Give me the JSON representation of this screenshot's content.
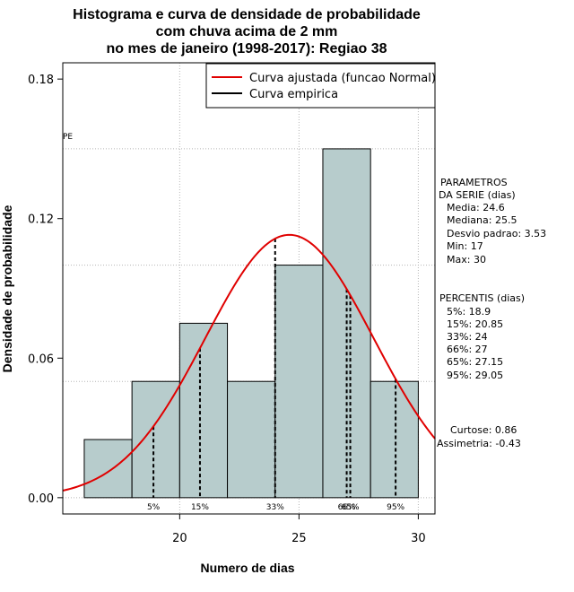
{
  "chart_data": {
    "type": "bar",
    "title_lines": [
      "Histograma e curva de densidade de probabilidade",
      "com chuva acima de 2 mm",
      "no mes de janeiro (1998-2017): Regiao 38"
    ],
    "xlabel": "Numero de dias",
    "ylabel": "Densidade de probabilidade",
    "xlim": [
      15.1,
      30.7
    ],
    "ylim": [
      -0.007,
      0.187
    ],
    "x_ticks": [
      20,
      25,
      30
    ],
    "y_ticks": [
      0.0,
      0.06,
      0.12,
      0.18
    ],
    "y_tick_labels": [
      "0.00",
      "0.06",
      "0.12",
      "0.18"
    ],
    "bins": [
      {
        "start": 16,
        "end": 18,
        "density": 0.025
      },
      {
        "start": 18,
        "end": 20,
        "density": 0.05
      },
      {
        "start": 20,
        "end": 22,
        "density": 0.075
      },
      {
        "start": 22,
        "end": 24,
        "density": 0.05
      },
      {
        "start": 24,
        "end": 26,
        "density": 0.1
      },
      {
        "start": 26,
        "end": 28,
        "density": 0.15
      },
      {
        "start": 28,
        "end": 30,
        "density": 0.05
      }
    ],
    "h_gridlines": [
      0.05,
      0.1,
      0.15
    ],
    "v_gridlines": [
      20,
      25,
      30
    ],
    "normal_curve": {
      "mean": 24.6,
      "sd": 3.53,
      "label": "Curva ajustada (funcao Normal)",
      "color": "#e00000"
    },
    "empirical_curve": {
      "label": "Curva empirica",
      "color": "#000000"
    },
    "pe_label": "PE",
    "percentiles": [
      {
        "label": "5%",
        "value": 18.9
      },
      {
        "label": "15%",
        "value": 20.85
      },
      {
        "label": "33%",
        "value": 24
      },
      {
        "label": "66%",
        "value": 27
      },
      {
        "label": "65%",
        "value": 27.15
      },
      {
        "label": "95%",
        "value": 29.05
      }
    ],
    "bar_fill": "#b7cccc",
    "stats_panel": {
      "parametros_title": [
        "PARAMETROS",
        "DA SERIE (dias)"
      ],
      "parametros": [
        "Media: 24.6",
        "Mediana: 25.5",
        "Desvio padrao: 3.53",
        "Min: 17",
        "Max: 30"
      ],
      "percentis_title": "PERCENTIS (dias)",
      "percentis": [
        "5%: 18.9",
        "15%: 20.85",
        "33%: 24",
        "66%: 27",
        "65%: 27.15",
        "95%: 29.05"
      ],
      "shape": [
        "Curtose: 0.86",
        "Assimetria: -0.43"
      ]
    }
  }
}
